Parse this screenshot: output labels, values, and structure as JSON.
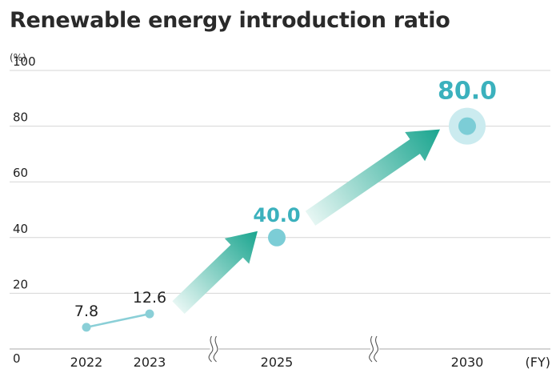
{
  "chart_data": {
    "type": "line",
    "title": "Renewable energy introduction ratio",
    "ylabel": "(%)",
    "xlabel": "(FY)",
    "ylim": [
      0,
      100
    ],
    "yticks": [
      0,
      20,
      40,
      60,
      80,
      100
    ],
    "categories": [
      "2022",
      "2023",
      "2025",
      "2030"
    ],
    "series": [
      {
        "name": "Renewable energy introduction ratio",
        "values": [
          7.8,
          12.6,
          40.0,
          80.0
        ],
        "labels": [
          "7.8",
          "12.6",
          "40.0",
          "80.0"
        ],
        "kinds": [
          "actual",
          "actual",
          "target",
          "target"
        ]
      }
    ],
    "grid": true,
    "axis_breaks": [
      "between 2023 and 2025",
      "between 2025 and 2030"
    ],
    "colors": {
      "actual": "#8acfd7",
      "target": "#7ccdd6",
      "target_halo": "#cbebef",
      "label_accent": "#3bb1bd",
      "arrow_dark": "#1aa58f",
      "arrow_light": "#e6f6f3",
      "grid": "#d6d6d6",
      "axis": "#aaaaaa"
    }
  }
}
